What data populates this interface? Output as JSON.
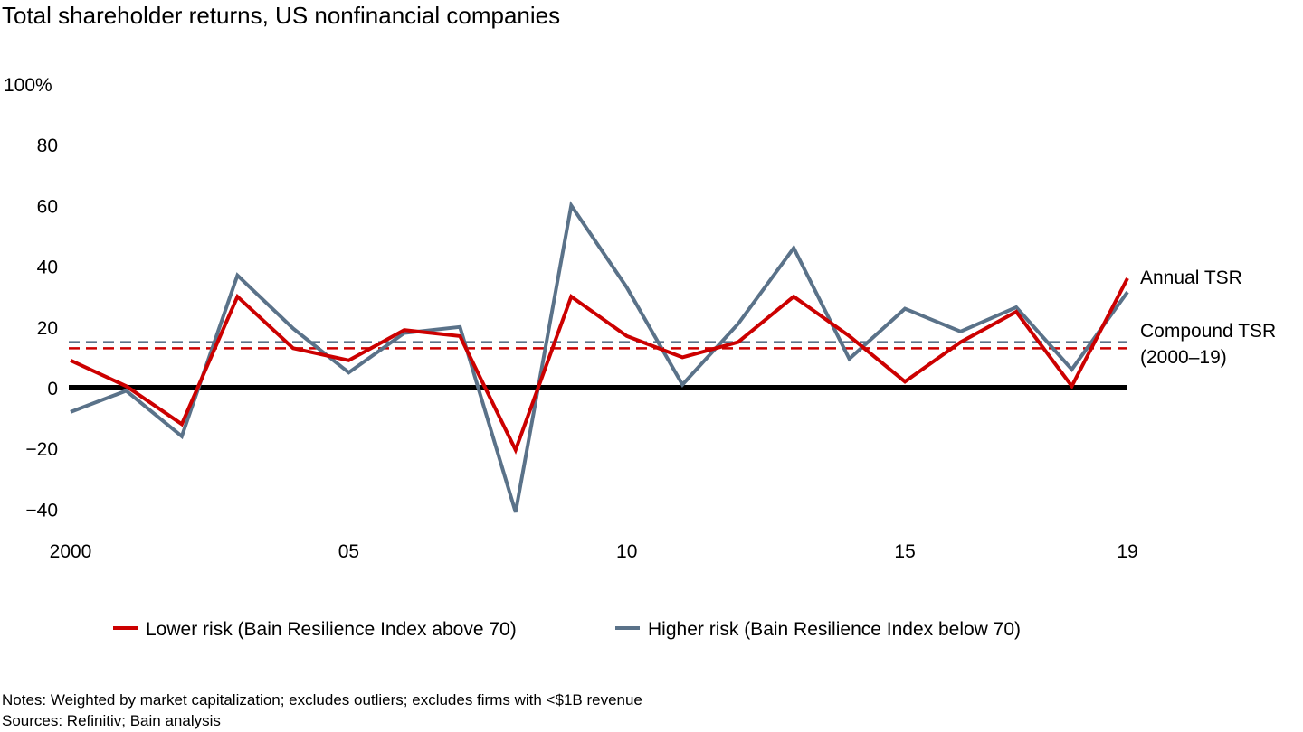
{
  "chart_data": {
    "type": "line",
    "title": "Total shareholder returns, US nonfinancial companies",
    "xlabel": "",
    "ylabel": "",
    "x": [
      2000,
      2001,
      2002,
      2003,
      2004,
      2005,
      2006,
      2007,
      2008,
      2009,
      2010,
      2011,
      2012,
      2013,
      2014,
      2015,
      2016,
      2017,
      2018,
      2019
    ],
    "x_tick_values": [
      2000,
      2005,
      2010,
      2015,
      2019
    ],
    "x_tick_labels": [
      "2000",
      "05",
      "10",
      "15",
      "19"
    ],
    "ylim": [
      -40,
      100
    ],
    "y_tick_values": [
      100,
      80,
      60,
      40,
      20,
      0,
      -20,
      -40
    ],
    "y_tick_labels": [
      "100%",
      "80",
      "60",
      "40",
      "20",
      "0",
      "−20",
      "−40"
    ],
    "grid": false,
    "series": [
      {
        "name": "Lower risk (Bain Resilience Index above 70)",
        "color": "#cc0000",
        "values": [
          9,
          0.5,
          -12,
          30,
          13,
          9,
          19,
          17,
          -20.5,
          30,
          17,
          10,
          15,
          30,
          17,
          2,
          15,
          25,
          0.5,
          36
        ],
        "compound_tsr": 13
      },
      {
        "name": "Higher risk (Bain Resilience Index below 70)",
        "color": "#5a7289",
        "values": [
          -8,
          -1,
          -16,
          37,
          19.5,
          5,
          18,
          20,
          -41,
          60,
          33,
          1,
          21,
          46,
          9.5,
          26,
          18.5,
          26.5,
          6,
          31.5
        ],
        "compound_tsr": 15
      }
    ],
    "annotations": {
      "annual": "Annual TSR",
      "compound_line1": "Compound TSR",
      "compound_line2": "(2000–19)"
    },
    "legend_position": "bottom-center"
  },
  "notes": {
    "notes_line": "Notes: Weighted by market capitalization; excludes outliers; excludes firms with <$1B revenue",
    "sources_line": "Sources: Refinitiv; Bain analysis"
  }
}
